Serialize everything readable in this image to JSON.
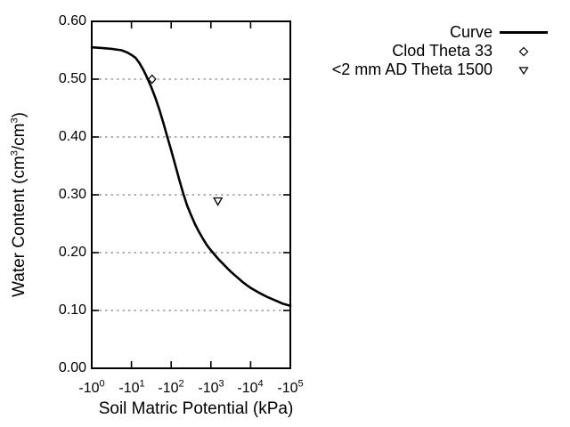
{
  "chart_data": {
    "type": "line",
    "title": "",
    "xlabel": "Soil Matric Potential (kPa)",
    "ylabel_parts": [
      "Water Content (cm",
      "3",
      "/cm",
      "3",
      ")"
    ],
    "x_scale": "log10 of absolute matric potential, negative values, decades 0 to 5",
    "xlim_kPa": [
      -1,
      -100000
    ],
    "ylim": [
      0.0,
      0.6
    ],
    "x_ticks": [
      {
        "base": "-10",
        "exp": "0"
      },
      {
        "base": "-10",
        "exp": "1"
      },
      {
        "base": "-10",
        "exp": "2"
      },
      {
        "base": "-10",
        "exp": "3"
      },
      {
        "base": "-10",
        "exp": "4"
      },
      {
        "base": "-10",
        "exp": "5"
      }
    ],
    "y_ticks": [
      "0.00",
      "0.10",
      "0.20",
      "0.30",
      "0.40",
      "0.50",
      "0.60"
    ],
    "grid_thetas": [
      0.1,
      0.2,
      0.3,
      0.4,
      0.5
    ],
    "grid_style": "horizontal dashed gray lines only",
    "legend_position": "top-right outside plot",
    "colors": {
      "curve": "#000000",
      "axis": "#000000",
      "grid": "#999999",
      "text": "#000000",
      "background": "#ffffff",
      "marker_fill": "#ffffff"
    },
    "series": [
      {
        "name": "Curve",
        "type": "line",
        "points_log10abs": [
          [
            0.0,
            0.555
          ],
          [
            0.25,
            0.554
          ],
          [
            0.5,
            0.5525
          ],
          [
            0.75,
            0.55
          ],
          [
            0.9,
            0.546
          ],
          [
            1.0,
            0.542
          ],
          [
            1.1,
            0.537
          ],
          [
            1.2,
            0.528
          ],
          [
            1.3,
            0.516
          ],
          [
            1.4,
            0.502
          ],
          [
            1.5,
            0.486
          ],
          [
            1.6,
            0.468
          ],
          [
            1.7,
            0.448
          ],
          [
            1.8,
            0.425
          ],
          [
            1.9,
            0.401
          ],
          [
            2.0,
            0.377
          ],
          [
            2.1,
            0.352
          ],
          [
            2.2,
            0.327
          ],
          [
            2.3,
            0.303
          ],
          [
            2.4,
            0.282
          ],
          [
            2.5,
            0.265
          ],
          [
            2.6,
            0.249
          ],
          [
            2.7,
            0.236
          ],
          [
            2.8,
            0.224
          ],
          [
            2.9,
            0.213
          ],
          [
            3.0,
            0.204
          ],
          [
            3.1,
            0.196
          ],
          [
            3.2,
            0.188
          ],
          [
            3.3,
            0.181
          ],
          [
            3.4,
            0.174
          ],
          [
            3.5,
            0.167
          ],
          [
            3.6,
            0.161
          ],
          [
            3.7,
            0.155
          ],
          [
            3.8,
            0.149
          ],
          [
            3.9,
            0.144
          ],
          [
            4.0,
            0.139
          ],
          [
            4.2,
            0.131
          ],
          [
            4.4,
            0.124
          ],
          [
            4.6,
            0.118
          ],
          [
            4.8,
            0.112
          ],
          [
            5.0,
            0.108
          ]
        ]
      },
      {
        "name": "Clod Theta 33",
        "type": "scatter",
        "marker": "diamond",
        "points": [
          [
            -33,
            0.5
          ]
        ]
      },
      {
        "name": "<2 mm AD Theta 1500",
        "type": "scatter",
        "marker": "triangle-down",
        "points": [
          [
            -1500,
            0.29
          ]
        ]
      }
    ]
  },
  "legend": {
    "items": [
      {
        "label": "Curve",
        "marker": "line"
      },
      {
        "label": "Clod Theta 33",
        "marker": "diamond"
      },
      {
        "label": "<2 mm AD Theta 1500",
        "marker": "triangle-down"
      }
    ]
  }
}
